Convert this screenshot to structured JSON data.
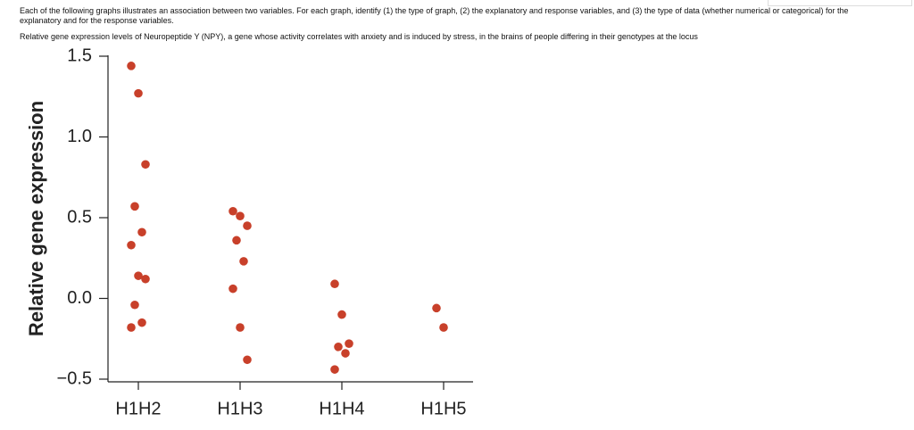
{
  "header": {
    "instructions": "Each of the following graphs illustrates an association between two variables. For each graph, identify (1) the type of graph, (2) the explanatory and response variables, and (3) the type of data (whether numerical or categorical) for the explanatory and for the response variables.",
    "caption": "Relative gene expression levels of Neuropeptide Y (NPY), a gene whose activity correlates with anxiety and is induced by stress, in the brains of people differing in their genotypes at the locus"
  },
  "chart_data": {
    "type": "strip",
    "y_label": "Relative gene expression",
    "categories": [
      "H1H2",
      "H1H3",
      "H1H4",
      "H1H5"
    ],
    "values": [
      [
        1.44,
        1.27,
        0.83,
        0.57,
        0.41,
        0.33,
        0.14,
        0.12,
        -0.04,
        -0.15,
        -0.18
      ],
      [
        0.54,
        0.51,
        0.45,
        0.36,
        0.23,
        0.06,
        -0.18,
        -0.38
      ],
      [
        0.09,
        -0.1,
        -0.28,
        -0.3,
        -0.34,
        -0.44
      ],
      [
        -0.06,
        -0.18
      ]
    ],
    "color": "#c8402a",
    "ylim": [
      -0.5,
      1.5
    ],
    "yticks": [
      {
        "value": -0.5,
        "label": "−0.5"
      },
      {
        "value": 0,
        "label": "0.0"
      },
      0.5,
      {
        "value": 1,
        "label": "1.0"
      },
      1.5
    ]
  }
}
